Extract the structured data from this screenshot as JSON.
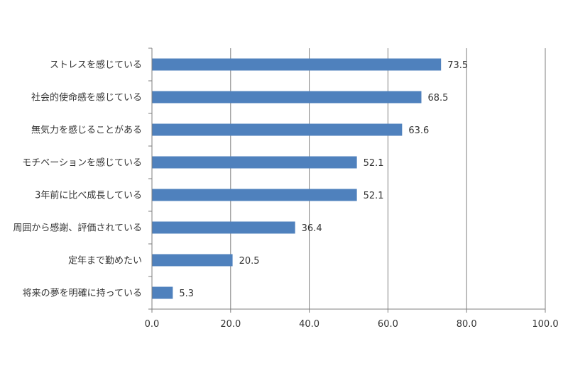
{
  "chart_data": {
    "type": "bar",
    "orientation": "horizontal",
    "categories": [
      "ストレスを感じている",
      "社会的使命感を感じている",
      "無気力を感じることがある",
      "モチベーションを感じている",
      "3年前に比べ成長している",
      "周囲から感謝、評価されている",
      "定年まで勤めたい",
      "将来の夢を明確に持っている"
    ],
    "values": [
      73.5,
      68.5,
      63.6,
      52.1,
      52.1,
      36.4,
      20.5,
      5.3
    ],
    "value_labels": [
      "73.5",
      "68.5",
      "63.6",
      "52.1",
      "52.1",
      "36.4",
      "20.5",
      "5.3"
    ],
    "xlim": [
      0,
      100
    ],
    "xticks": [
      0,
      20,
      40,
      60,
      80,
      100
    ],
    "xtick_labels": [
      "0.0",
      "20.0",
      "40.0",
      "60.0",
      "80.0",
      "100.0"
    ],
    "grid": "vertical",
    "bar_color": "#4f81bd",
    "grid_color": "#7f7f7f",
    "label_color": "#333333"
  }
}
